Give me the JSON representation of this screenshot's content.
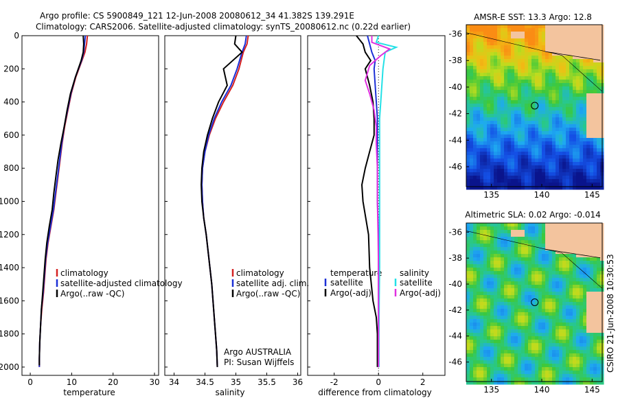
{
  "header": {
    "line1": "Argo profile: CS 5900849_121 12-Jun-2008 20080612_34 41.382S 139.291E",
    "line2": "Climatology: CARS2006. Satellite-adjusted climatology: synTS_20080612.nc (0.22d earlier)"
  },
  "side_label": "CSIRO 21-Jun-2008 10:30:53",
  "colors": {
    "clim": "#d42020",
    "sat": "#1b2fd6",
    "argo": "#000000",
    "sal_sat": "#22e0e6",
    "sal_argo": "#e030e0",
    "land": "#f3c49e"
  },
  "chart_data": [
    {
      "type": "line",
      "id": "temperature",
      "xlabel": "temperature",
      "xlim": [
        -2,
        31
      ],
      "ylim": [
        2050,
        0
      ],
      "xticks": [
        0,
        10,
        20,
        30
      ],
      "yticks": [
        0,
        200,
        400,
        600,
        800,
        1000,
        1200,
        1400,
        1600,
        1800,
        2000
      ],
      "legend": [
        "climatology",
        "satellite-adjusted climatology",
        "Argo(..raw -QC)"
      ],
      "series": [
        {
          "key": "clim",
          "name": "climatology",
          "x": [
            13.8,
            13.6,
            13.2,
            12.5,
            11.0,
            9.9,
            9.1,
            8.3,
            7.7,
            7.2,
            6.7,
            6.2,
            5.7,
            5.0,
            4.3,
            3.8,
            3.5,
            3.2,
            2.8,
            2.5,
            2.3,
            2.2,
            2.2
          ],
          "y": [
            0,
            50,
            100,
            150,
            250,
            350,
            450,
            550,
            650,
            750,
            850,
            950,
            1050,
            1150,
            1250,
            1350,
            1450,
            1550,
            1650,
            1750,
            1850,
            1950,
            2000
          ]
        },
        {
          "key": "sat",
          "name": "satellite-adjusted climatology",
          "x": [
            13.3,
            13.1,
            12.9,
            12.4,
            10.9,
            9.8,
            9.0,
            8.2,
            7.6,
            7.1,
            6.6,
            6.1,
            5.6,
            4.9,
            4.2,
            3.7,
            3.4,
            3.1,
            2.7,
            2.5,
            2.3,
            2.2,
            2.2
          ],
          "y": [
            0,
            50,
            100,
            150,
            250,
            350,
            450,
            550,
            650,
            750,
            850,
            950,
            1050,
            1150,
            1250,
            1350,
            1450,
            1550,
            1650,
            1750,
            1850,
            1950,
            2000
          ]
        },
        {
          "key": "argo",
          "name": "Argo(..raw -QC)",
          "x": [
            12.8,
            12.9,
            12.8,
            12.3,
            10.9,
            9.7,
            8.9,
            8.2,
            7.4,
            6.7,
            6.2,
            5.7,
            5.3,
            4.6,
            4.0,
            3.6,
            3.3,
            3.0,
            2.7,
            2.5,
            2.3,
            2.2,
            2.2
          ],
          "y": [
            0,
            50,
            100,
            150,
            250,
            350,
            450,
            550,
            650,
            750,
            850,
            950,
            1050,
            1150,
            1250,
            1350,
            1450,
            1550,
            1650,
            1750,
            1850,
            1950,
            1990
          ]
        }
      ]
    },
    {
      "type": "line",
      "id": "salinity",
      "xlabel": "salinity",
      "xlim": [
        33.85,
        36.05
      ],
      "ylim": [
        2050,
        0
      ],
      "xticks": [
        34,
        34.5,
        35,
        35.5,
        36
      ],
      "yticks": [
        0,
        200,
        400,
        600,
        800,
        1000,
        1200,
        1400,
        1600,
        1800,
        2000
      ],
      "legend": [
        "climatology",
        "satellite adj. clim.",
        "Argo(..raw -QC)"
      ],
      "annotation": [
        "Argo AUSTRALIA",
        "PI: Susan Wijffels"
      ],
      "series": [
        {
          "key": "clim",
          "name": "climatology",
          "x": [
            35.2,
            35.18,
            35.12,
            35.05,
            34.95,
            34.8,
            34.67,
            34.57,
            34.5,
            34.46,
            34.45,
            34.46,
            34.48,
            34.52,
            34.55,
            34.58,
            34.61,
            34.63,
            34.65,
            34.67,
            34.69,
            34.7
          ],
          "y": [
            0,
            50,
            100,
            200,
            300,
            400,
            500,
            600,
            700,
            800,
            900,
            1000,
            1100,
            1200,
            1300,
            1400,
            1500,
            1600,
            1700,
            1800,
            1900,
            2000
          ]
        },
        {
          "key": "sat",
          "name": "satellite adj. clim.",
          "x": [
            35.17,
            35.15,
            35.1,
            35.02,
            34.92,
            34.77,
            34.65,
            34.56,
            34.5,
            34.46,
            34.45,
            34.46,
            34.48,
            34.52,
            34.55,
            34.58,
            34.61,
            34.63,
            34.65,
            34.67,
            34.69,
            34.7
          ],
          "y": [
            0,
            50,
            100,
            200,
            300,
            400,
            500,
            600,
            700,
            800,
            900,
            1000,
            1100,
            1200,
            1300,
            1400,
            1500,
            1600,
            1700,
            1800,
            1900,
            2000
          ]
        },
        {
          "key": "argo",
          "name": "Argo(..raw -QC)",
          "x": [
            35.0,
            34.98,
            35.1,
            34.8,
            34.86,
            34.72,
            34.62,
            34.54,
            34.48,
            34.45,
            34.44,
            34.45,
            34.48,
            34.52,
            34.55,
            34.58,
            34.61,
            34.63,
            34.65,
            34.67,
            34.69,
            34.7
          ],
          "y": [
            0,
            50,
            100,
            200,
            300,
            400,
            500,
            600,
            700,
            800,
            900,
            1000,
            1100,
            1200,
            1300,
            1400,
            1500,
            1600,
            1700,
            1800,
            1900,
            2000
          ]
        }
      ]
    },
    {
      "type": "line",
      "id": "difference",
      "xlabel": "difference from climatology",
      "xlim": [
        -3.2,
        3.0
      ],
      "ylim": [
        2050,
        0
      ],
      "xticks": [
        -2,
        0,
        2
      ],
      "yticks": [
        0,
        200,
        400,
        600,
        800,
        1000,
        1200,
        1400,
        1600,
        1800,
        2000
      ],
      "legend_groups": [
        {
          "title": "temperature",
          "items": [
            "satellite",
            "Argo(-adj)"
          ]
        },
        {
          "title": "salinity",
          "items": [
            "satellite",
            "Argo(-adj)"
          ]
        }
      ],
      "series": [
        {
          "key": "temp_sat",
          "name": "satellite",
          "x": [
            -0.5,
            -0.4,
            -0.3,
            -0.15,
            -0.2,
            -0.15,
            -0.1,
            -0.05,
            -0.05,
            -0.05,
            -0.05,
            -0.05,
            0.0,
            0.0,
            0.0,
            0.0,
            0.0,
            0.0,
            0.0,
            0.0
          ],
          "y": [
            0,
            50,
            100,
            150,
            200,
            300,
            400,
            500,
            600,
            700,
            800,
            1000,
            1200,
            1400,
            1500,
            1600,
            1700,
            1800,
            1900,
            2000
          ]
        },
        {
          "key": "temp_argo",
          "name": "Argo(-adj)",
          "x": [
            -1.0,
            -0.7,
            -0.6,
            -0.35,
            -0.6,
            -0.4,
            -0.25,
            -0.2,
            -0.2,
            -0.4,
            -0.6,
            -0.75,
            -0.7,
            -0.45,
            -0.4,
            -0.25,
            -0.1,
            -0.05,
            -0.05,
            -0.05
          ],
          "y": [
            0,
            50,
            100,
            150,
            200,
            300,
            400,
            500,
            600,
            700,
            800,
            900,
            1000,
            1200,
            1400,
            1600,
            1700,
            1800,
            1900,
            2000
          ]
        },
        {
          "key": "sal_sat",
          "name": "satellite",
          "x": [
            0.0,
            -0.1,
            0.8,
            0.3,
            0.2,
            0.15,
            0.1,
            0.05,
            0.05,
            0.05,
            0.05,
            0.05,
            0.05,
            0.05,
            0.03,
            0.02,
            0.02,
            0.02
          ],
          "y": [
            0,
            40,
            70,
            100,
            200,
            300,
            400,
            500,
            600,
            700,
            800,
            1000,
            1200,
            1400,
            1600,
            1800,
            1950,
            2000
          ]
        },
        {
          "key": "sal_argo",
          "name": "Argo(-adj)",
          "x": [
            -0.3,
            -0.3,
            0.5,
            0.1,
            -0.4,
            -0.6,
            -0.4,
            -0.2,
            -0.1,
            -0.1,
            -0.05,
            -0.05,
            -0.02,
            0.0,
            0.0,
            0.0
          ],
          "y": [
            0,
            40,
            80,
            120,
            180,
            270,
            350,
            450,
            550,
            650,
            800,
            1000,
            1200,
            1400,
            1700,
            2000
          ]
        }
      ]
    }
  ],
  "maps": [
    {
      "title": "AMSR-E SST: 13.3 Argo: 12.8",
      "xticks": [
        135,
        140,
        145
      ],
      "yticks": [
        -36,
        -38,
        -40,
        -42,
        -44,
        -46
      ],
      "lon_range": [
        132.5,
        146
      ],
      "lat_range": [
        -47.5,
        -35.3
      ],
      "marker": {
        "lon": 139.3,
        "lat": -41.4
      }
    },
    {
      "title": "Altimetric SLA: 0.02 Argo: -0.014",
      "xticks": [
        135,
        140,
        145
      ],
      "yticks": [
        -36,
        -38,
        -40,
        -42,
        -44,
        -46
      ],
      "lon_range": [
        132.5,
        146
      ],
      "lat_range": [
        -47.5,
        -35.3
      ],
      "marker": {
        "lon": 139.3,
        "lat": -41.4
      }
    }
  ]
}
